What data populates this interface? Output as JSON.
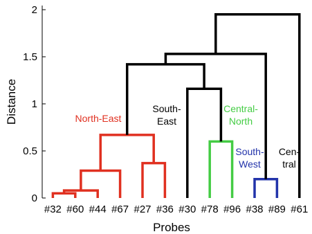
{
  "chart_data": {
    "type": "dendrogram",
    "title": "",
    "xlabel": "Probes",
    "ylabel": "Distance",
    "ylim": [
      0,
      2.05
    ],
    "yticks": [
      0,
      0.5,
      1,
      1.5,
      2
    ],
    "ytick_labels": [
      "0",
      "0.5",
      "1",
      "1.5",
      "2"
    ],
    "leaves": [
      "#32",
      "#60",
      "#44",
      "#67",
      "#27",
      "#36",
      "#30",
      "#78",
      "#96",
      "#38",
      "#89",
      "#61"
    ],
    "merges": [
      {
        "left": 1,
        "right": 2,
        "height": 0.05,
        "color": "#e03020"
      },
      {
        "left": 1.5,
        "right": 3,
        "height": 0.08,
        "color": "#e03020"
      },
      {
        "left": 2.25,
        "right": 4,
        "height": 0.29,
        "color": "#e03020"
      },
      {
        "left": 5,
        "right": 6,
        "height": 0.37,
        "color": "#e03020"
      },
      {
        "left": 3.125,
        "right": 5.5,
        "height": 0.67,
        "color": "#e03020"
      },
      {
        "left": 8,
        "right": 9,
        "height": 0.6,
        "color": "#44cc44"
      },
      {
        "left": 10,
        "right": 11,
        "height": 0.2,
        "color": "#2233aa"
      },
      {
        "left": 7,
        "right": 8.5,
        "height": 1.16,
        "color": "#000000"
      },
      {
        "left": 4.3125,
        "right": 7.75,
        "height": 1.42,
        "color": "#000000"
      },
      {
        "left": 6.03125,
        "right": 10.5,
        "height": 1.53,
        "color": "#000000"
      },
      {
        "left": 8.265625,
        "right": 12,
        "height": 1.95,
        "color": "#000000"
      }
    ],
    "annotations": [
      {
        "lines": [
          "North-East"
        ],
        "color": "#e03020"
      },
      {
        "lines": [
          "South-",
          "East"
        ],
        "color": "#000000"
      },
      {
        "lines": [
          "Central-",
          "North"
        ],
        "color": "#44cc44"
      },
      {
        "lines": [
          "South-",
          "West"
        ],
        "color": "#2233aa"
      },
      {
        "lines": [
          "Cen-",
          "tral"
        ],
        "color": "#000000"
      }
    ]
  }
}
